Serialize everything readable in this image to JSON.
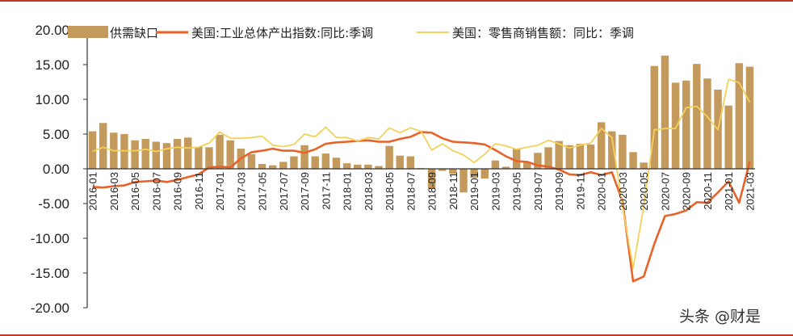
{
  "watermark": "头条 @财是",
  "chart_data": {
    "type": "bar+line",
    "ylim": [
      -20,
      20
    ],
    "yticks": [
      "20.00",
      "15.00",
      "10.00",
      "5.00",
      "0.00",
      "-5.00",
      "-10.00",
      "-15.00",
      "-20.00"
    ],
    "ytick_values": [
      20,
      15,
      10,
      5,
      0,
      -5,
      -10,
      -15,
      -20
    ],
    "x": [
      "2016-01",
      "2016-02",
      "2016-03",
      "2016-04",
      "2016-05",
      "2016-06",
      "2016-07",
      "2016-08",
      "2016-09",
      "2016-10",
      "2016-11",
      "2016-12",
      "2017-01",
      "2017-02",
      "2017-03",
      "2017-04",
      "2017-05",
      "2017-06",
      "2017-07",
      "2017-08",
      "2017-09",
      "2017-10",
      "2017-11",
      "2017-12",
      "2018-01",
      "2018-02",
      "2018-03",
      "2018-04",
      "2018-05",
      "2018-06",
      "2018-07",
      "2018-08",
      "2018-09",
      "2018-10",
      "2018-11",
      "2018-12",
      "2019-01",
      "2019-02",
      "2019-03",
      "2019-04",
      "2019-05",
      "2019-06",
      "2019-07",
      "2019-08",
      "2019-09",
      "2019-10",
      "2019-11",
      "2019-12",
      "2020-01",
      "2020-02",
      "2020-03",
      "2020-04",
      "2020-05",
      "2020-06",
      "2020-07",
      "2020-08",
      "2020-09",
      "2020-10",
      "2020-11",
      "2020-12",
      "2021-01",
      "2021-02",
      "2021-03"
    ],
    "xtick_labels": [
      "2016-01",
      "2016-03",
      "2016-05",
      "2016-07",
      "2016-09",
      "2016-11",
      "2017-01",
      "2017-03",
      "2017-05",
      "2017-07",
      "2017-09",
      "2017-11",
      "2018-01",
      "2018-03",
      "2018-05",
      "2018-07",
      "2018-09",
      "2018-11",
      "2019-01",
      "2019-03",
      "2019-05",
      "2019-07",
      "2019-09",
      "2019-11",
      "2020-01",
      "2020-03",
      "2020-05",
      "2020-07",
      "2020-09",
      "2020-11",
      "2021-01",
      "2021-03"
    ],
    "legend_position": "top",
    "series": [
      {
        "name": "供需缺口",
        "kind": "bar",
        "color": "#c49a5c",
        "values": [
          5.4,
          6.6,
          5.2,
          5.0,
          4.1,
          4.3,
          3.9,
          3.7,
          4.3,
          4.5,
          3.2,
          3.1,
          4.9,
          4.1,
          2.9,
          2.1,
          0.7,
          0.5,
          1.0,
          1.8,
          3.4,
          1.8,
          2.2,
          1.6,
          0.8,
          0.6,
          0.6,
          0.4,
          3.3,
          1.9,
          1.8,
          0.1,
          -2.9,
          -0.3,
          -0.7,
          -3.4,
          -1.3,
          -1.4,
          1.2,
          0.3,
          2.9,
          1.0,
          2.3,
          3.1,
          4.0,
          3.4,
          3.6,
          3.5,
          6.7,
          5.4,
          4.9,
          2.4,
          0.9,
          14.8,
          16.3,
          12.4,
          12.7,
          15.1,
          13.0,
          11.4,
          9.1,
          15.2,
          14.7
        ]
      },
      {
        "name": "美国:工业总体产出指数:同比:季调",
        "kind": "line",
        "color": "#e8622a",
        "values": [
          -2.6,
          -2.7,
          -2.5,
          -2.4,
          -1.9,
          -1.8,
          -1.7,
          -1.9,
          -1.6,
          -1.2,
          -0.8,
          0.2,
          0.3,
          0.2,
          1.5,
          2.4,
          2.6,
          2.9,
          2.6,
          2.6,
          2.3,
          2.8,
          3.6,
          3.8,
          3.9,
          4.0,
          4.1,
          3.9,
          3.9,
          4.3,
          4.6,
          5.3,
          5.2,
          4.4,
          3.9,
          3.8,
          3.7,
          3.5,
          2.7,
          1.8,
          1.1,
          1.0,
          0.5,
          0.3,
          -0.1,
          -0.8,
          -0.9,
          -0.5,
          -0.9,
          -0.5,
          -4.7,
          -16.2,
          -15.5,
          -10.8,
          -6.8,
          -6.5,
          -6.0,
          -4.8,
          -4.9,
          -3.4,
          -1.8,
          -4.9,
          1.0
        ]
      },
      {
        "name": "美国：零售商销售额：同比：季调",
        "kind": "line",
        "color": "#f2d15c",
        "values": [
          2.5,
          3.1,
          2.6,
          2.6,
          2.6,
          2.8,
          2.5,
          2.9,
          3.1,
          3.0,
          3.1,
          3.7,
          5.3,
          4.4,
          4.4,
          4.5,
          4.7,
          3.4,
          3.2,
          3.5,
          5.0,
          4.6,
          6.0,
          4.5,
          4.5,
          4.0,
          4.5,
          4.3,
          5.9,
          5.2,
          5.9,
          5.4,
          2.7,
          3.6,
          2.6,
          2.0,
          0.9,
          2.1,
          3.6,
          3.3,
          2.8,
          3.1,
          3.4,
          4.1,
          3.6,
          3.0,
          3.4,
          3.7,
          5.8,
          4.5,
          -5.4,
          -14.3,
          -5.4,
          5.6,
          5.8,
          5.8,
          8.8,
          9.0,
          7.5,
          5.6,
          12.9,
          12.4,
          9.6
        ]
      }
    ]
  }
}
